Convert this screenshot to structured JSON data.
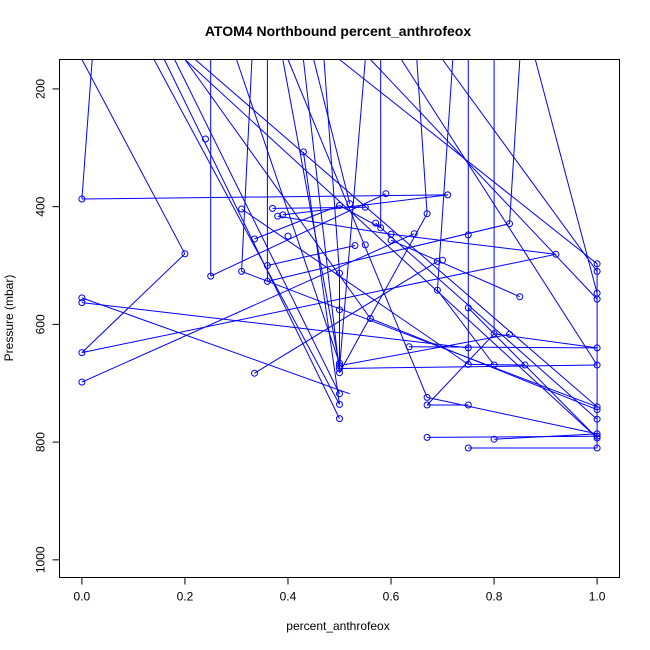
{
  "chart_data": {
    "type": "scatter",
    "title": "ATOM4 Northbound percent_anthrofeox",
    "xlabel": "percent_anthrofeox",
    "ylabel": "Pressure (mbar)",
    "xlim": [
      0.0,
      1.0
    ],
    "ylim": [
      1030,
      150
    ],
    "y_reversed": true,
    "x_ticks": [
      0.0,
      0.2,
      0.4,
      0.6,
      0.8,
      1.0
    ],
    "x_tick_labels": [
      "0.0",
      "0.2",
      "0.4",
      "0.6",
      "0.8",
      "1.0"
    ],
    "y_ticks": [
      200,
      400,
      600,
      800,
      1000
    ],
    "y_tick_labels": [
      "200",
      "400",
      "600",
      "800",
      "1000"
    ],
    "grid": false,
    "legend": "none",
    "series_color": "#0000ff",
    "points": [
      [
        0.0,
        387
      ],
      [
        0.0,
        555
      ],
      [
        0.0,
        563
      ],
      [
        0.0,
        648
      ],
      [
        0.0,
        698
      ],
      [
        0.2,
        480
      ],
      [
        0.24,
        285
      ],
      [
        0.25,
        518
      ],
      [
        0.31,
        404
      ],
      [
        0.31,
        510
      ],
      [
        0.335,
        455
      ],
      [
        0.335,
        683
      ],
      [
        0.36,
        500
      ],
      [
        0.36,
        527
      ],
      [
        0.37,
        403
      ],
      [
        0.38,
        416
      ],
      [
        0.39,
        414
      ],
      [
        0.4,
        450
      ],
      [
        0.43,
        307
      ],
      [
        0.5,
        398
      ],
      [
        0.5,
        513
      ],
      [
        0.5,
        575
      ],
      [
        0.5,
        666
      ],
      [
        0.5,
        670
      ],
      [
        0.5,
        675
      ],
      [
        0.5,
        682
      ],
      [
        0.5,
        718
      ],
      [
        0.5,
        736
      ],
      [
        0.5,
        760
      ],
      [
        0.52,
        395
      ],
      [
        0.53,
        466
      ],
      [
        0.55,
        465
      ],
      [
        0.55,
        401
      ],
      [
        0.56,
        590
      ],
      [
        0.57,
        428
      ],
      [
        0.58,
        436
      ],
      [
        0.59,
        378
      ],
      [
        0.6,
        447
      ],
      [
        0.6,
        457
      ],
      [
        0.635,
        638
      ],
      [
        0.645,
        446
      ],
      [
        0.67,
        412
      ],
      [
        0.67,
        724
      ],
      [
        0.67,
        737
      ],
      [
        0.67,
        792
      ],
      [
        0.69,
        493
      ],
      [
        0.69,
        542
      ],
      [
        0.7,
        491
      ],
      [
        0.71,
        380
      ],
      [
        0.75,
        448
      ],
      [
        0.75,
        572
      ],
      [
        0.75,
        640
      ],
      [
        0.75,
        668
      ],
      [
        0.75,
        737
      ],
      [
        0.75,
        810
      ],
      [
        0.8,
        616
      ],
      [
        0.8,
        669
      ],
      [
        0.8,
        795
      ],
      [
        0.83,
        429
      ],
      [
        0.83,
        617
      ],
      [
        0.85,
        553
      ],
      [
        0.86,
        669
      ],
      [
        0.92,
        481
      ],
      [
        1.0,
        497
      ],
      [
        1.0,
        510
      ],
      [
        1.0,
        547
      ],
      [
        1.0,
        557
      ],
      [
        1.0,
        640
      ],
      [
        1.0,
        669
      ],
      [
        1.0,
        740
      ],
      [
        1.0,
        745
      ],
      [
        1.0,
        761
      ],
      [
        1.0,
        786
      ],
      [
        1.0,
        790
      ],
      [
        1.0,
        793
      ],
      [
        1.0,
        810
      ]
    ],
    "segments": [
      [
        0.0,
        387,
        0.71,
        380
      ],
      [
        0.0,
        555,
        0.52,
        718
      ],
      [
        0.0,
        563,
        0.75,
        640
      ],
      [
        0.0,
        648,
        0.92,
        481
      ],
      [
        0.0,
        698,
        0.645,
        446
      ],
      [
        0.2,
        480,
        0.0,
        648
      ],
      [
        0.25,
        518,
        0.59,
        378
      ],
      [
        0.31,
        404,
        0.75,
        668
      ],
      [
        0.31,
        510,
        1.0,
        740
      ],
      [
        0.335,
        455,
        0.5,
        398
      ],
      [
        0.335,
        683,
        0.69,
        493
      ],
      [
        0.36,
        500,
        0.53,
        466
      ],
      [
        0.36,
        527,
        0.83,
        429
      ],
      [
        0.37,
        403,
        0.55,
        401
      ],
      [
        0.38,
        416,
        0.6,
        447
      ],
      [
        0.39,
        414,
        0.71,
        380
      ],
      [
        0.43,
        307,
        0.5,
        736
      ],
      [
        0.5,
        398,
        0.58,
        436
      ],
      [
        0.5,
        513,
        0.5,
        666
      ],
      [
        0.56,
        590,
        1.0,
        745
      ],
      [
        0.57,
        428,
        1.0,
        761
      ],
      [
        0.6,
        457,
        0.85,
        553
      ],
      [
        0.635,
        638,
        1.0,
        640
      ],
      [
        0.67,
        412,
        0.5,
        682
      ],
      [
        0.67,
        724,
        1.0,
        786
      ],
      [
        0.67,
        737,
        0.75,
        737
      ],
      [
        0.67,
        792,
        1.0,
        790
      ],
      [
        0.69,
        542,
        0.8,
        669
      ],
      [
        0.75,
        448,
        0.75,
        668
      ],
      [
        0.75,
        572,
        1.0,
        793
      ],
      [
        0.75,
        810,
        1.0,
        810
      ],
      [
        0.8,
        616,
        0.67,
        737
      ],
      [
        0.8,
        795,
        1.0,
        786
      ],
      [
        0.83,
        617,
        0.5,
        670
      ],
      [
        0.86,
        669,
        0.75,
        668
      ],
      [
        0.92,
        481,
        0.6,
        447
      ],
      [
        1.0,
        497,
        1.0,
        810
      ],
      [
        1.0,
        640,
        0.8,
        616
      ],
      [
        1.0,
        669,
        0.5,
        675
      ],
      [
        0.0,
        150,
        0.2,
        480
      ],
      [
        0.02,
        150,
        0.0,
        387
      ],
      [
        0.14,
        150,
        0.5,
        736
      ],
      [
        0.16,
        150,
        0.5,
        760
      ],
      [
        0.18,
        150,
        0.5,
        718
      ],
      [
        0.2,
        150,
        0.56,
        590
      ],
      [
        0.2,
        150,
        1.0,
        793
      ],
      [
        0.22,
        150,
        1.0,
        740
      ],
      [
        0.25,
        150,
        0.25,
        518
      ],
      [
        0.3,
        150,
        0.5,
        666
      ],
      [
        0.33,
        150,
        0.31,
        510
      ],
      [
        0.36,
        150,
        0.36,
        527
      ],
      [
        0.39,
        150,
        0.5,
        670
      ],
      [
        0.4,
        150,
        0.67,
        724
      ],
      [
        0.43,
        150,
        0.5,
        682
      ],
      [
        0.45,
        150,
        0.52,
        395
      ],
      [
        0.47,
        150,
        0.5,
        513
      ],
      [
        0.5,
        150,
        1.0,
        497
      ],
      [
        0.55,
        150,
        0.5,
        675
      ],
      [
        0.56,
        150,
        1.0,
        557
      ],
      [
        0.58,
        150,
        0.58,
        436
      ],
      [
        0.62,
        150,
        1.0,
        669
      ],
      [
        0.65,
        150,
        0.67,
        412
      ],
      [
        0.7,
        150,
        1.0,
        510
      ],
      [
        0.72,
        150,
        0.69,
        542
      ],
      [
        0.75,
        150,
        0.75,
        448
      ],
      [
        0.8,
        150,
        0.8,
        616
      ],
      [
        0.85,
        150,
        0.83,
        429
      ],
      [
        0.88,
        150,
        1.0,
        547
      ],
      [
        0.9,
        150,
        0.9,
        150
      ]
    ]
  }
}
